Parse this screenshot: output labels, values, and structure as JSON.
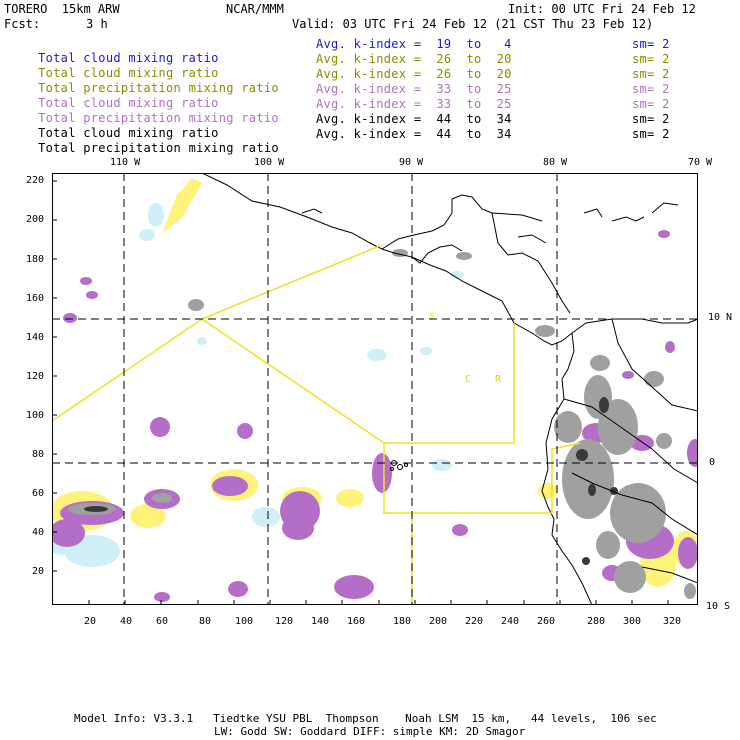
{
  "header": {
    "model": "TORERO  15km ARW",
    "org": "NCAR/MMM",
    "init": "Init: 00 UTC Fri 24 Feb 12",
    "fcst_label": "Fcst:",
    "fcst_value": "3 h",
    "valid": "Valid: 03 UTC Fri 24 Feb 12 (21 CST Thu 23 Feb 12)"
  },
  "legend": [
    {
      "field": "Total cloud mixing ratio",
      "kindex": "Avg. k-index =  19  to   4",
      "sm": "sm= 2",
      "color": "#1a1acc"
    },
    {
      "field": "Total cloud mixing ratio",
      "kindex": "Avg. k-index =  26  to  20",
      "sm": "sm= 2",
      "color": "#8b8b00"
    },
    {
      "field": "Total precipitation mixing ratio",
      "kindex": "Avg. k-index =  26  to  20",
      "sm": "sm= 2",
      "color": "#8b8b00"
    },
    {
      "field": "Total cloud mixing ratio",
      "kindex": "Avg. k-index =  33  to  25",
      "sm": "sm= 2",
      "color": "#b070c0"
    },
    {
      "field": "Total precipitation mixing ratio",
      "kindex": "Avg. k-index =  33  to  25",
      "sm": "sm= 2",
      "color": "#b070c0"
    },
    {
      "field": "Total cloud mixing ratio",
      "kindex": "Avg. k-index =  44  to  34",
      "sm": "sm= 2",
      "color": "#000000"
    },
    {
      "field": "Total precipitation mixing ratio",
      "kindex": "Avg. k-index =  44  to  34",
      "sm": "sm= 2",
      "color": "#000000"
    }
  ],
  "map": {
    "top_lon_labels": [
      "110 W",
      "100 W",
      "90 W",
      "80 W",
      "70 W"
    ],
    "right_lat_labels": [
      "10 N",
      "0",
      "10 S"
    ],
    "left_grid_labels": [
      "220",
      "200",
      "180",
      "160",
      "140",
      "120",
      "100",
      "80",
      "60",
      "40",
      "20"
    ],
    "bottom_grid_labels": [
      "20",
      "40",
      "60",
      "80",
      "100",
      "120",
      "140",
      "160",
      "180",
      "200",
      "220",
      "240",
      "260",
      "280",
      "300",
      "320"
    ],
    "inner_labels": [
      "C",
      "R"
    ],
    "colors": {
      "cloud_light": "#cfeef8",
      "yellow": "#fdf37a",
      "purple": "#b46ec8",
      "gray": "#9a9a9a",
      "dark": "#3a3a3a",
      "outline": "#f0e020"
    }
  },
  "footer": {
    "line1": "Model Info: V3.3.1   Tiedtke YSU PBL  Thompson    Noah LSM  15 km,   44 levels,  106 sec",
    "line2": "LW: Godd SW: Goddard DIFF: simple KM: 2D Smagor"
  }
}
